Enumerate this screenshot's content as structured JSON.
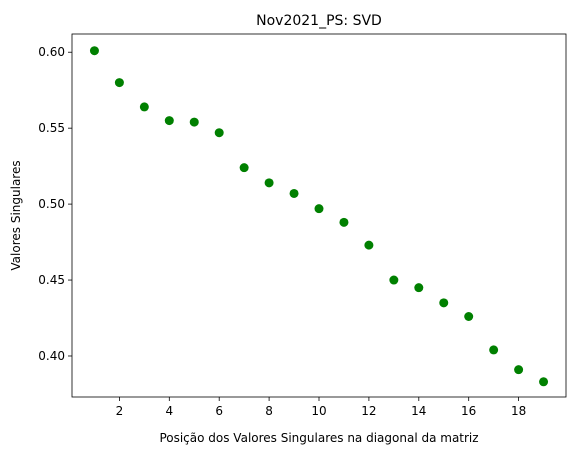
{
  "chart_data": {
    "type": "scatter",
    "title": "Nov2021_PS: SVD",
    "xlabel": "Posição dos Valores Singulares na diagonal da matriz",
    "ylabel": "Valores Singulares",
    "xlim": [
      0.1,
      19.9
    ],
    "ylim": [
      0.373,
      0.612
    ],
    "xticks": [
      2,
      4,
      6,
      8,
      10,
      12,
      14,
      16,
      18
    ],
    "yticks": [
      0.4,
      0.45,
      0.5,
      0.55,
      0.6
    ],
    "xtick_labels": [
      "2",
      "4",
      "6",
      "8",
      "10",
      "12",
      "14",
      "16",
      "18"
    ],
    "ytick_labels": [
      "0.40",
      "0.45",
      "0.50",
      "0.55",
      "0.60"
    ],
    "grid": false,
    "marker_color": "#008000",
    "series": [
      {
        "x": [
          1,
          2,
          3,
          4,
          5,
          6,
          7,
          8,
          9,
          10,
          11,
          12,
          13,
          14,
          15,
          16,
          17,
          18,
          19
        ],
        "y": [
          0.601,
          0.58,
          0.564,
          0.555,
          0.554,
          0.547,
          0.524,
          0.514,
          0.507,
          0.497,
          0.488,
          0.473,
          0.45,
          0.445,
          0.435,
          0.426,
          0.404,
          0.391,
          0.383
        ]
      }
    ]
  }
}
